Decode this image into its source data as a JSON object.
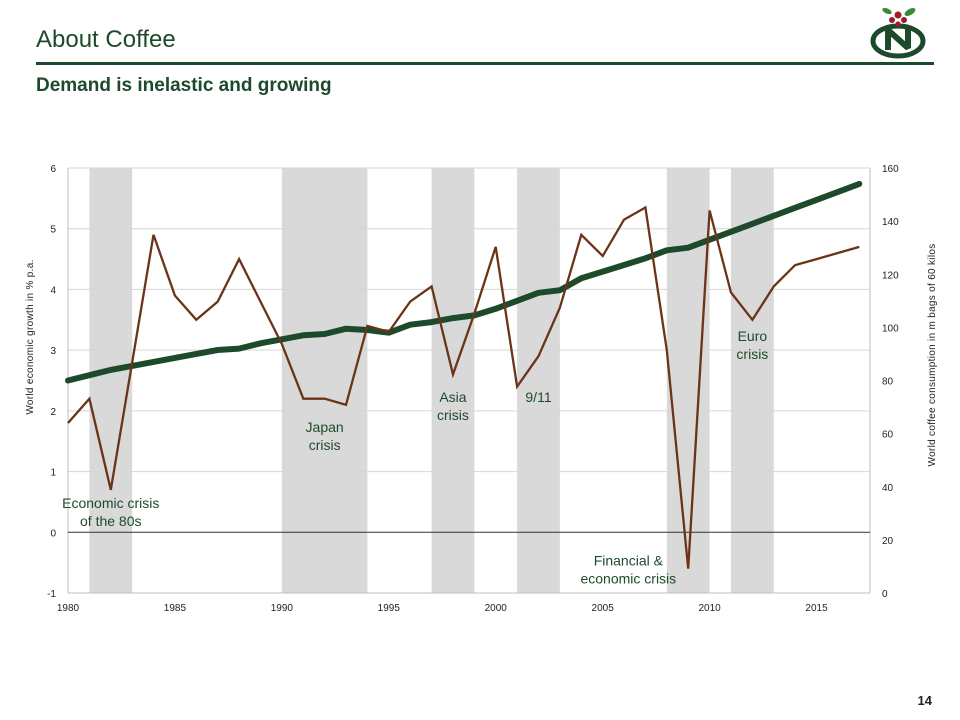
{
  "slide": {
    "title": "About Coffee",
    "subtitle": "Demand is inelastic and growing",
    "page_number": "14"
  },
  "colors": {
    "brand_green": "#1e4a2c",
    "growth_line": "#6b3418",
    "consumption_line": "#1c4a2a",
    "crisis_band": "#d9d9d9"
  },
  "icons": {
    "logo": "coffee-cherry-logo-icon"
  },
  "chart_data": {
    "type": "line",
    "xlim": [
      1980,
      2017.5
    ],
    "x_ticks": [
      1980,
      1985,
      1990,
      1995,
      2000,
      2005,
      2010,
      2015
    ],
    "y_left": {
      "label": "World economic growth in % p.a.",
      "lim": [
        -1,
        6
      ],
      "ticks": [
        -1,
        0,
        1,
        2,
        3,
        4,
        5,
        6
      ]
    },
    "y_right": {
      "label": "World coffee consumption in m bags of 60 kilos",
      "lim": [
        0,
        160
      ],
      "ticks": [
        0,
        20,
        40,
        60,
        80,
        100,
        120,
        140,
        160
      ]
    },
    "grid": "horizontal",
    "legend": "none",
    "series": [
      {
        "axis": "left",
        "x": [
          1980,
          1981,
          1982,
          1983,
          1984,
          1985,
          1986,
          1987,
          1988,
          1989,
          1990,
          1991,
          1992,
          1993,
          1994,
          1995,
          1996,
          1997,
          1998,
          1999,
          2000,
          2001,
          2002,
          2003,
          2004,
          2005,
          2006,
          2007,
          2008,
          2009,
          2010,
          2011,
          2012,
          2013,
          2014,
          2015,
          2016,
          2017
        ],
        "values": [
          1.8,
          2.2,
          0.7,
          2.8,
          4.9,
          3.9,
          3.5,
          3.8,
          4.5,
          3.8,
          3.1,
          2.2,
          2.2,
          2.1,
          3.4,
          3.3,
          3.8,
          4.05,
          2.6,
          3.6,
          4.7,
          2.4,
          2.9,
          3.7,
          4.9,
          4.55,
          5.15,
          5.35,
          3.0,
          -0.6,
          5.3,
          3.95,
          3.5,
          4.05,
          4.4,
          4.5,
          4.6,
          4.7
        ]
      },
      {
        "axis": "right",
        "x": [
          1980,
          1981,
          1982,
          1983,
          1984,
          1985,
          1986,
          1987,
          1988,
          1989,
          1990,
          1991,
          1992,
          1993,
          1994,
          1995,
          1996,
          1997,
          1998,
          1999,
          2000,
          2001,
          2002,
          2003,
          2004,
          2005,
          2006,
          2007,
          2008,
          2009,
          2010,
          2011,
          2012,
          2013,
          2014,
          2015,
          2016,
          2017
        ],
        "values": [
          80,
          82,
          84,
          85.5,
          87,
          88.5,
          90,
          91.5,
          92,
          94,
          95.5,
          97,
          97.5,
          99.5,
          99,
          98,
          101,
          102,
          103.5,
          104.5,
          107,
          110,
          113,
          114,
          118.5,
          121,
          123.5,
          126,
          129,
          130,
          133,
          136,
          139,
          142,
          145,
          148,
          151,
          154
        ]
      }
    ],
    "crisis_bands": [
      {
        "from": 1981,
        "to": 1983
      },
      {
        "from": 1990,
        "to": 1994
      },
      {
        "from": 1997,
        "to": 1999
      },
      {
        "from": 2001,
        "to": 2003
      },
      {
        "from": 2008,
        "to": 2010
      },
      {
        "from": 2011,
        "to": 2013
      }
    ],
    "annotations": [
      {
        "lines": [
          "Economic crisis",
          "of the 80s"
        ],
        "x": 1982,
        "y": 0.4
      },
      {
        "lines": [
          "Japan",
          "crisis"
        ],
        "x": 1992,
        "y": 1.65
      },
      {
        "lines": [
          "Asia",
          "crisis"
        ],
        "x": 1998,
        "y": 2.15
      },
      {
        "lines": [
          "9/11"
        ],
        "x": 2002,
        "y": 2.15
      },
      {
        "lines": [
          "Financial &",
          "economic crisis"
        ],
        "x": 2006.2,
        "y": -0.55
      },
      {
        "lines": [
          "Euro",
          "crisis"
        ],
        "x": 2012,
        "y": 3.15
      }
    ]
  }
}
